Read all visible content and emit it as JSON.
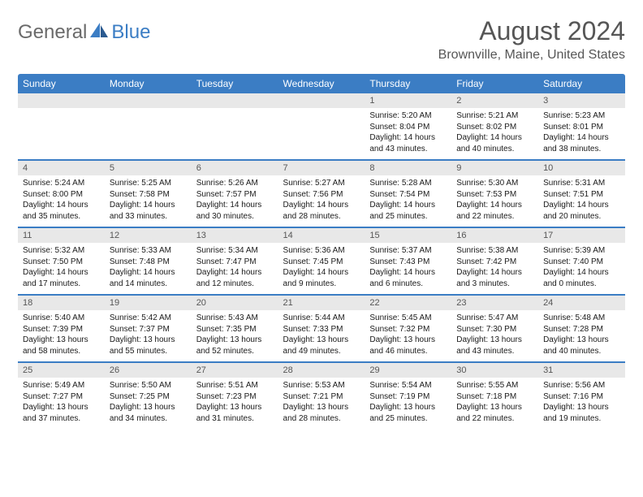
{
  "logo": {
    "general": "General",
    "blue": "Blue"
  },
  "title": "August 2024",
  "location": "Brownville, Maine, United States",
  "day_headers": [
    "Sunday",
    "Monday",
    "Tuesday",
    "Wednesday",
    "Thursday",
    "Friday",
    "Saturday"
  ],
  "colors": {
    "header_bg": "#3b7dc4",
    "header_text": "#ffffff",
    "daynum_bg": "#e8e8e8",
    "daynum_text": "#565656",
    "body_text": "#1a1a1a",
    "title_text": "#565656",
    "logo_gray": "#6a6a6a",
    "logo_blue": "#3b7dc4"
  },
  "weeks": [
    [
      {
        "day": "",
        "sunrise": "",
        "sunset": "",
        "daylight": ""
      },
      {
        "day": "",
        "sunrise": "",
        "sunset": "",
        "daylight": ""
      },
      {
        "day": "",
        "sunrise": "",
        "sunset": "",
        "daylight": ""
      },
      {
        "day": "",
        "sunrise": "",
        "sunset": "",
        "daylight": ""
      },
      {
        "day": "1",
        "sunrise": "Sunrise: 5:20 AM",
        "sunset": "Sunset: 8:04 PM",
        "daylight": "Daylight: 14 hours and 43 minutes."
      },
      {
        "day": "2",
        "sunrise": "Sunrise: 5:21 AM",
        "sunset": "Sunset: 8:02 PM",
        "daylight": "Daylight: 14 hours and 40 minutes."
      },
      {
        "day": "3",
        "sunrise": "Sunrise: 5:23 AM",
        "sunset": "Sunset: 8:01 PM",
        "daylight": "Daylight: 14 hours and 38 minutes."
      }
    ],
    [
      {
        "day": "4",
        "sunrise": "Sunrise: 5:24 AM",
        "sunset": "Sunset: 8:00 PM",
        "daylight": "Daylight: 14 hours and 35 minutes."
      },
      {
        "day": "5",
        "sunrise": "Sunrise: 5:25 AM",
        "sunset": "Sunset: 7:58 PM",
        "daylight": "Daylight: 14 hours and 33 minutes."
      },
      {
        "day": "6",
        "sunrise": "Sunrise: 5:26 AM",
        "sunset": "Sunset: 7:57 PM",
        "daylight": "Daylight: 14 hours and 30 minutes."
      },
      {
        "day": "7",
        "sunrise": "Sunrise: 5:27 AM",
        "sunset": "Sunset: 7:56 PM",
        "daylight": "Daylight: 14 hours and 28 minutes."
      },
      {
        "day": "8",
        "sunrise": "Sunrise: 5:28 AM",
        "sunset": "Sunset: 7:54 PM",
        "daylight": "Daylight: 14 hours and 25 minutes."
      },
      {
        "day": "9",
        "sunrise": "Sunrise: 5:30 AM",
        "sunset": "Sunset: 7:53 PM",
        "daylight": "Daylight: 14 hours and 22 minutes."
      },
      {
        "day": "10",
        "sunrise": "Sunrise: 5:31 AM",
        "sunset": "Sunset: 7:51 PM",
        "daylight": "Daylight: 14 hours and 20 minutes."
      }
    ],
    [
      {
        "day": "11",
        "sunrise": "Sunrise: 5:32 AM",
        "sunset": "Sunset: 7:50 PM",
        "daylight": "Daylight: 14 hours and 17 minutes."
      },
      {
        "day": "12",
        "sunrise": "Sunrise: 5:33 AM",
        "sunset": "Sunset: 7:48 PM",
        "daylight": "Daylight: 14 hours and 14 minutes."
      },
      {
        "day": "13",
        "sunrise": "Sunrise: 5:34 AM",
        "sunset": "Sunset: 7:47 PM",
        "daylight": "Daylight: 14 hours and 12 minutes."
      },
      {
        "day": "14",
        "sunrise": "Sunrise: 5:36 AM",
        "sunset": "Sunset: 7:45 PM",
        "daylight": "Daylight: 14 hours and 9 minutes."
      },
      {
        "day": "15",
        "sunrise": "Sunrise: 5:37 AM",
        "sunset": "Sunset: 7:43 PM",
        "daylight": "Daylight: 14 hours and 6 minutes."
      },
      {
        "day": "16",
        "sunrise": "Sunrise: 5:38 AM",
        "sunset": "Sunset: 7:42 PM",
        "daylight": "Daylight: 14 hours and 3 minutes."
      },
      {
        "day": "17",
        "sunrise": "Sunrise: 5:39 AM",
        "sunset": "Sunset: 7:40 PM",
        "daylight": "Daylight: 14 hours and 0 minutes."
      }
    ],
    [
      {
        "day": "18",
        "sunrise": "Sunrise: 5:40 AM",
        "sunset": "Sunset: 7:39 PM",
        "daylight": "Daylight: 13 hours and 58 minutes."
      },
      {
        "day": "19",
        "sunrise": "Sunrise: 5:42 AM",
        "sunset": "Sunset: 7:37 PM",
        "daylight": "Daylight: 13 hours and 55 minutes."
      },
      {
        "day": "20",
        "sunrise": "Sunrise: 5:43 AM",
        "sunset": "Sunset: 7:35 PM",
        "daylight": "Daylight: 13 hours and 52 minutes."
      },
      {
        "day": "21",
        "sunrise": "Sunrise: 5:44 AM",
        "sunset": "Sunset: 7:33 PM",
        "daylight": "Daylight: 13 hours and 49 minutes."
      },
      {
        "day": "22",
        "sunrise": "Sunrise: 5:45 AM",
        "sunset": "Sunset: 7:32 PM",
        "daylight": "Daylight: 13 hours and 46 minutes."
      },
      {
        "day": "23",
        "sunrise": "Sunrise: 5:47 AM",
        "sunset": "Sunset: 7:30 PM",
        "daylight": "Daylight: 13 hours and 43 minutes."
      },
      {
        "day": "24",
        "sunrise": "Sunrise: 5:48 AM",
        "sunset": "Sunset: 7:28 PM",
        "daylight": "Daylight: 13 hours and 40 minutes."
      }
    ],
    [
      {
        "day": "25",
        "sunrise": "Sunrise: 5:49 AM",
        "sunset": "Sunset: 7:27 PM",
        "daylight": "Daylight: 13 hours and 37 minutes."
      },
      {
        "day": "26",
        "sunrise": "Sunrise: 5:50 AM",
        "sunset": "Sunset: 7:25 PM",
        "daylight": "Daylight: 13 hours and 34 minutes."
      },
      {
        "day": "27",
        "sunrise": "Sunrise: 5:51 AM",
        "sunset": "Sunset: 7:23 PM",
        "daylight": "Daylight: 13 hours and 31 minutes."
      },
      {
        "day": "28",
        "sunrise": "Sunrise: 5:53 AM",
        "sunset": "Sunset: 7:21 PM",
        "daylight": "Daylight: 13 hours and 28 minutes."
      },
      {
        "day": "29",
        "sunrise": "Sunrise: 5:54 AM",
        "sunset": "Sunset: 7:19 PM",
        "daylight": "Daylight: 13 hours and 25 minutes."
      },
      {
        "day": "30",
        "sunrise": "Sunrise: 5:55 AM",
        "sunset": "Sunset: 7:18 PM",
        "daylight": "Daylight: 13 hours and 22 minutes."
      },
      {
        "day": "31",
        "sunrise": "Sunrise: 5:56 AM",
        "sunset": "Sunset: 7:16 PM",
        "daylight": "Daylight: 13 hours and 19 minutes."
      }
    ]
  ]
}
